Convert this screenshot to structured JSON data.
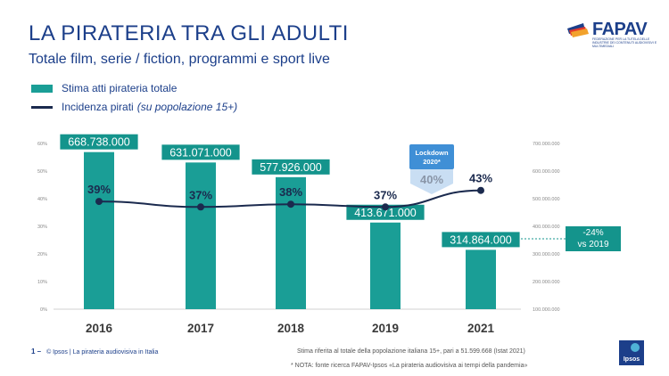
{
  "header": {
    "title": "LA PIRATERIA TRA GLI ADULTI",
    "subtitle": "Totale film, serie / fiction, programmi e sport live"
  },
  "logo": {
    "name": "FAPAV",
    "subline": "FEDERAZIONE PER LA TUTELA DELLE INDUSTRIE DEI CONTENUTI AUDIOVISIVI E MULTIMEDIALI"
  },
  "legend": {
    "bars": "Stima atti pirateria totale",
    "line": "Incidenza pirati",
    "line_note": "(su popolazione 15+)"
  },
  "chart_data": {
    "type": "bar",
    "categories": [
      "2016",
      "2017",
      "2018",
      "2019",
      "2021"
    ],
    "series": [
      {
        "name": "Stima atti pirateria totale",
        "type": "bar",
        "axis": "right",
        "values": [
          668738000,
          631071000,
          577926000,
          413671000,
          314864000
        ],
        "labels": [
          "668.738.000",
          "631.071.000",
          "577.926.000",
          "413.671.000",
          "314.864.000"
        ]
      },
      {
        "name": "Incidenza pirati",
        "type": "line",
        "axis": "left",
        "values": [
          39,
          37,
          38,
          37,
          43
        ],
        "labels": [
          "39%",
          "37%",
          "38%",
          "37%",
          "43%"
        ]
      }
    ],
    "left_axis": {
      "ylim": [
        0,
        60
      ],
      "ticks": [
        "0%",
        "10%",
        "20%",
        "30%",
        "40%",
        "50%",
        "60%"
      ]
    },
    "right_axis": {
      "ylim": [
        100000000,
        700000000
      ],
      "ticks": [
        "100.000.000",
        "200.000.000",
        "300.000.000",
        "400.000.000",
        "500.000.000",
        "600.000.000",
        "700.000.000"
      ]
    },
    "annotation": {
      "label": "Lockdown 2020*",
      "value": "40%"
    },
    "grid": false
  },
  "side_box": {
    "line1": "-24%",
    "line2": "vs 2019"
  },
  "footer": {
    "page": "1 –",
    "source": "© Ipsos | La pirateria audiovisiva in Italia",
    "note1": "Stima riferita al totale della popolazione italiana 15+, pari a 51.599.668 (Istat 2021)",
    "note2": "* NOTA: fonte ricerca FAPAV-Ipsos «La pirateria audiovisiva ai tempi della pandemia»",
    "brand": "Ipsos"
  },
  "colors": {
    "bar": "#1a9e96",
    "line": "#1b2a4e",
    "title": "#1c3f8a",
    "lockdown": "#3f8fd6"
  }
}
